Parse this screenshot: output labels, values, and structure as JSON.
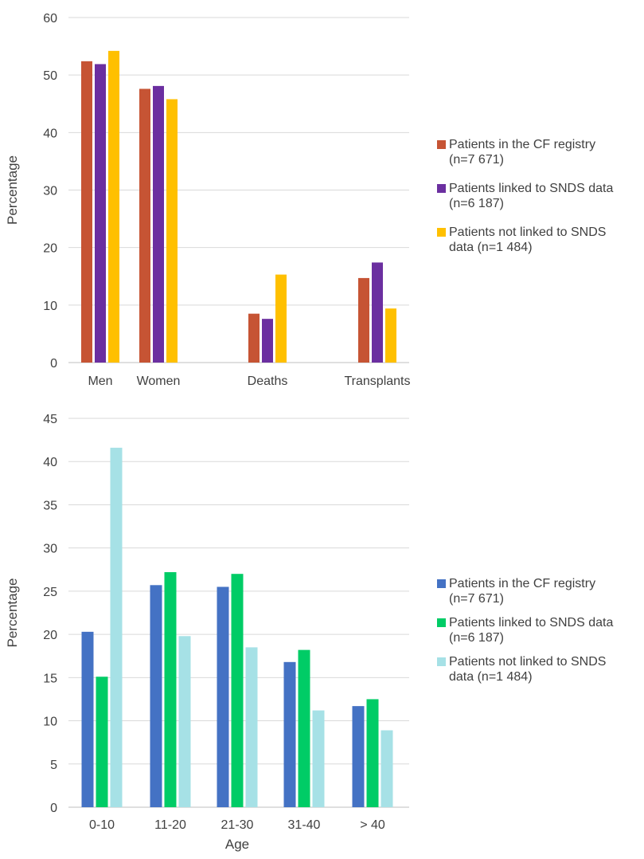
{
  "chart_data": [
    {
      "type": "bar",
      "title": "",
      "xlabel": "",
      "ylabel": "Percentage",
      "ylim": [
        0,
        60
      ],
      "yticks": [
        0,
        10,
        20,
        30,
        40,
        50,
        60
      ],
      "grid": true,
      "legend_position": "right",
      "categories": [
        "Men",
        "Women",
        "Deaths",
        "Transplants"
      ],
      "series": [
        {
          "name": "Patients in the CF registry (n=7 671)",
          "legend_lines": [
            "Patients in the CF registry",
            "(n=7 671)"
          ],
          "color": "#c65434",
          "values": [
            52.4,
            47.6,
            8.5,
            14.7
          ]
        },
        {
          "name": "Patients linked to SNDS data (n=6 187)",
          "legend_lines": [
            "Patients linked to SNDS data",
            "(n=6 187)"
          ],
          "color": "#6b2fa0",
          "values": [
            51.9,
            48.1,
            7.6,
            17.4
          ]
        },
        {
          "name": "Patients not linked to SNDS data (n=1 484)",
          "legend_lines": [
            "Patients not linked to SNDS",
            "data (n=1 484)"
          ],
          "color": "#ffc000",
          "values": [
            54.2,
            45.8,
            15.3,
            9.4
          ]
        }
      ]
    },
    {
      "type": "bar",
      "title": "",
      "xlabel": "Age",
      "ylabel": "Percentage",
      "ylim": [
        0,
        45
      ],
      "yticks": [
        0,
        5,
        10,
        15,
        20,
        25,
        30,
        35,
        40,
        45
      ],
      "grid": true,
      "legend_position": "right",
      "categories": [
        "0-10",
        "11-20",
        "21-30",
        "31-40",
        "> 40"
      ],
      "series": [
        {
          "name": "Patients in the CF registry (n=7 671)",
          "legend_lines": [
            "Patients in the CF registry",
            "(n=7 671)"
          ],
          "color": "#4472c4",
          "values": [
            20.3,
            25.7,
            25.5,
            16.8,
            11.7
          ]
        },
        {
          "name": "Patients linked to SNDS data (n=6 187)",
          "legend_lines": [
            "Patients linked to SNDS data",
            "(n=6 187)"
          ],
          "color": "#00cc66",
          "values": [
            15.1,
            27.2,
            27.0,
            18.2,
            12.5
          ]
        },
        {
          "name": "Patients not linked to SNDS data (n=1 484)",
          "legend_lines": [
            "Patients not linked to SNDS",
            "data (n=1 484)"
          ],
          "color": "#a6e1e6",
          "values": [
            41.6,
            19.8,
            18.5,
            11.2,
            8.9
          ]
        }
      ]
    }
  ]
}
